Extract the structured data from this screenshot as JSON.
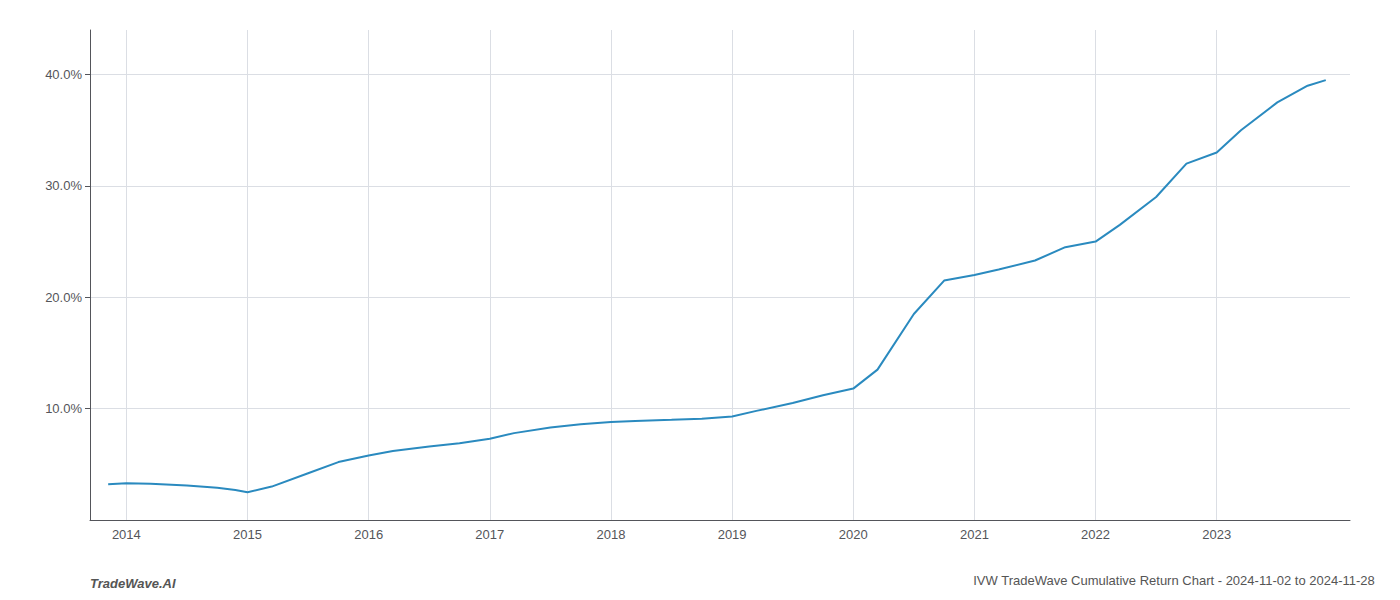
{
  "chart_data": {
    "type": "line",
    "title": "IVW TradeWave Cumulative Return Chart - 2024-11-02 to 2024-11-28",
    "annotations": [
      "TradeWave.AI"
    ],
    "color": "#2a8abf",
    "x": [
      2013.85,
      2014.0,
      2014.2,
      2014.5,
      2014.75,
      2014.9,
      2015.0,
      2015.2,
      2015.5,
      2015.75,
      2016.0,
      2016.2,
      2016.5,
      2016.75,
      2017.0,
      2017.2,
      2017.5,
      2017.75,
      2018.0,
      2018.2,
      2018.5,
      2018.75,
      2019.0,
      2019.2,
      2019.5,
      2019.75,
      2020.0,
      2020.2,
      2020.5,
      2020.75,
      2021.0,
      2021.2,
      2021.5,
      2021.75,
      2022.0,
      2022.2,
      2022.5,
      2022.75,
      2023.0,
      2023.2,
      2023.5,
      2023.75,
      2023.9
    ],
    "values": [
      3.2,
      3.3,
      3.25,
      3.1,
      2.9,
      2.7,
      2.5,
      3.0,
      4.2,
      5.2,
      5.8,
      6.2,
      6.6,
      6.9,
      7.3,
      7.8,
      8.3,
      8.6,
      8.8,
      8.9,
      9.0,
      9.1,
      9.3,
      9.8,
      10.5,
      11.2,
      11.8,
      13.5,
      18.5,
      21.5,
      22.0,
      22.5,
      23.3,
      24.5,
      25.0,
      26.5,
      29.0,
      32.0,
      33.0,
      35.0,
      37.5,
      39.0,
      39.5
    ],
    "xlim": [
      2013.7,
      2024.1
    ],
    "xticks": [
      2014,
      2015,
      2016,
      2017,
      2018,
      2019,
      2020,
      2021,
      2022,
      2023
    ],
    "ylim": [
      0,
      44
    ],
    "yticks": [
      {
        "value": 10.0,
        "label": "10.0%"
      },
      {
        "value": 20.0,
        "label": "20.0%"
      },
      {
        "value": 30.0,
        "label": "30.0%"
      },
      {
        "value": 40.0,
        "label": "40.0%"
      }
    ],
    "grid": true
  }
}
